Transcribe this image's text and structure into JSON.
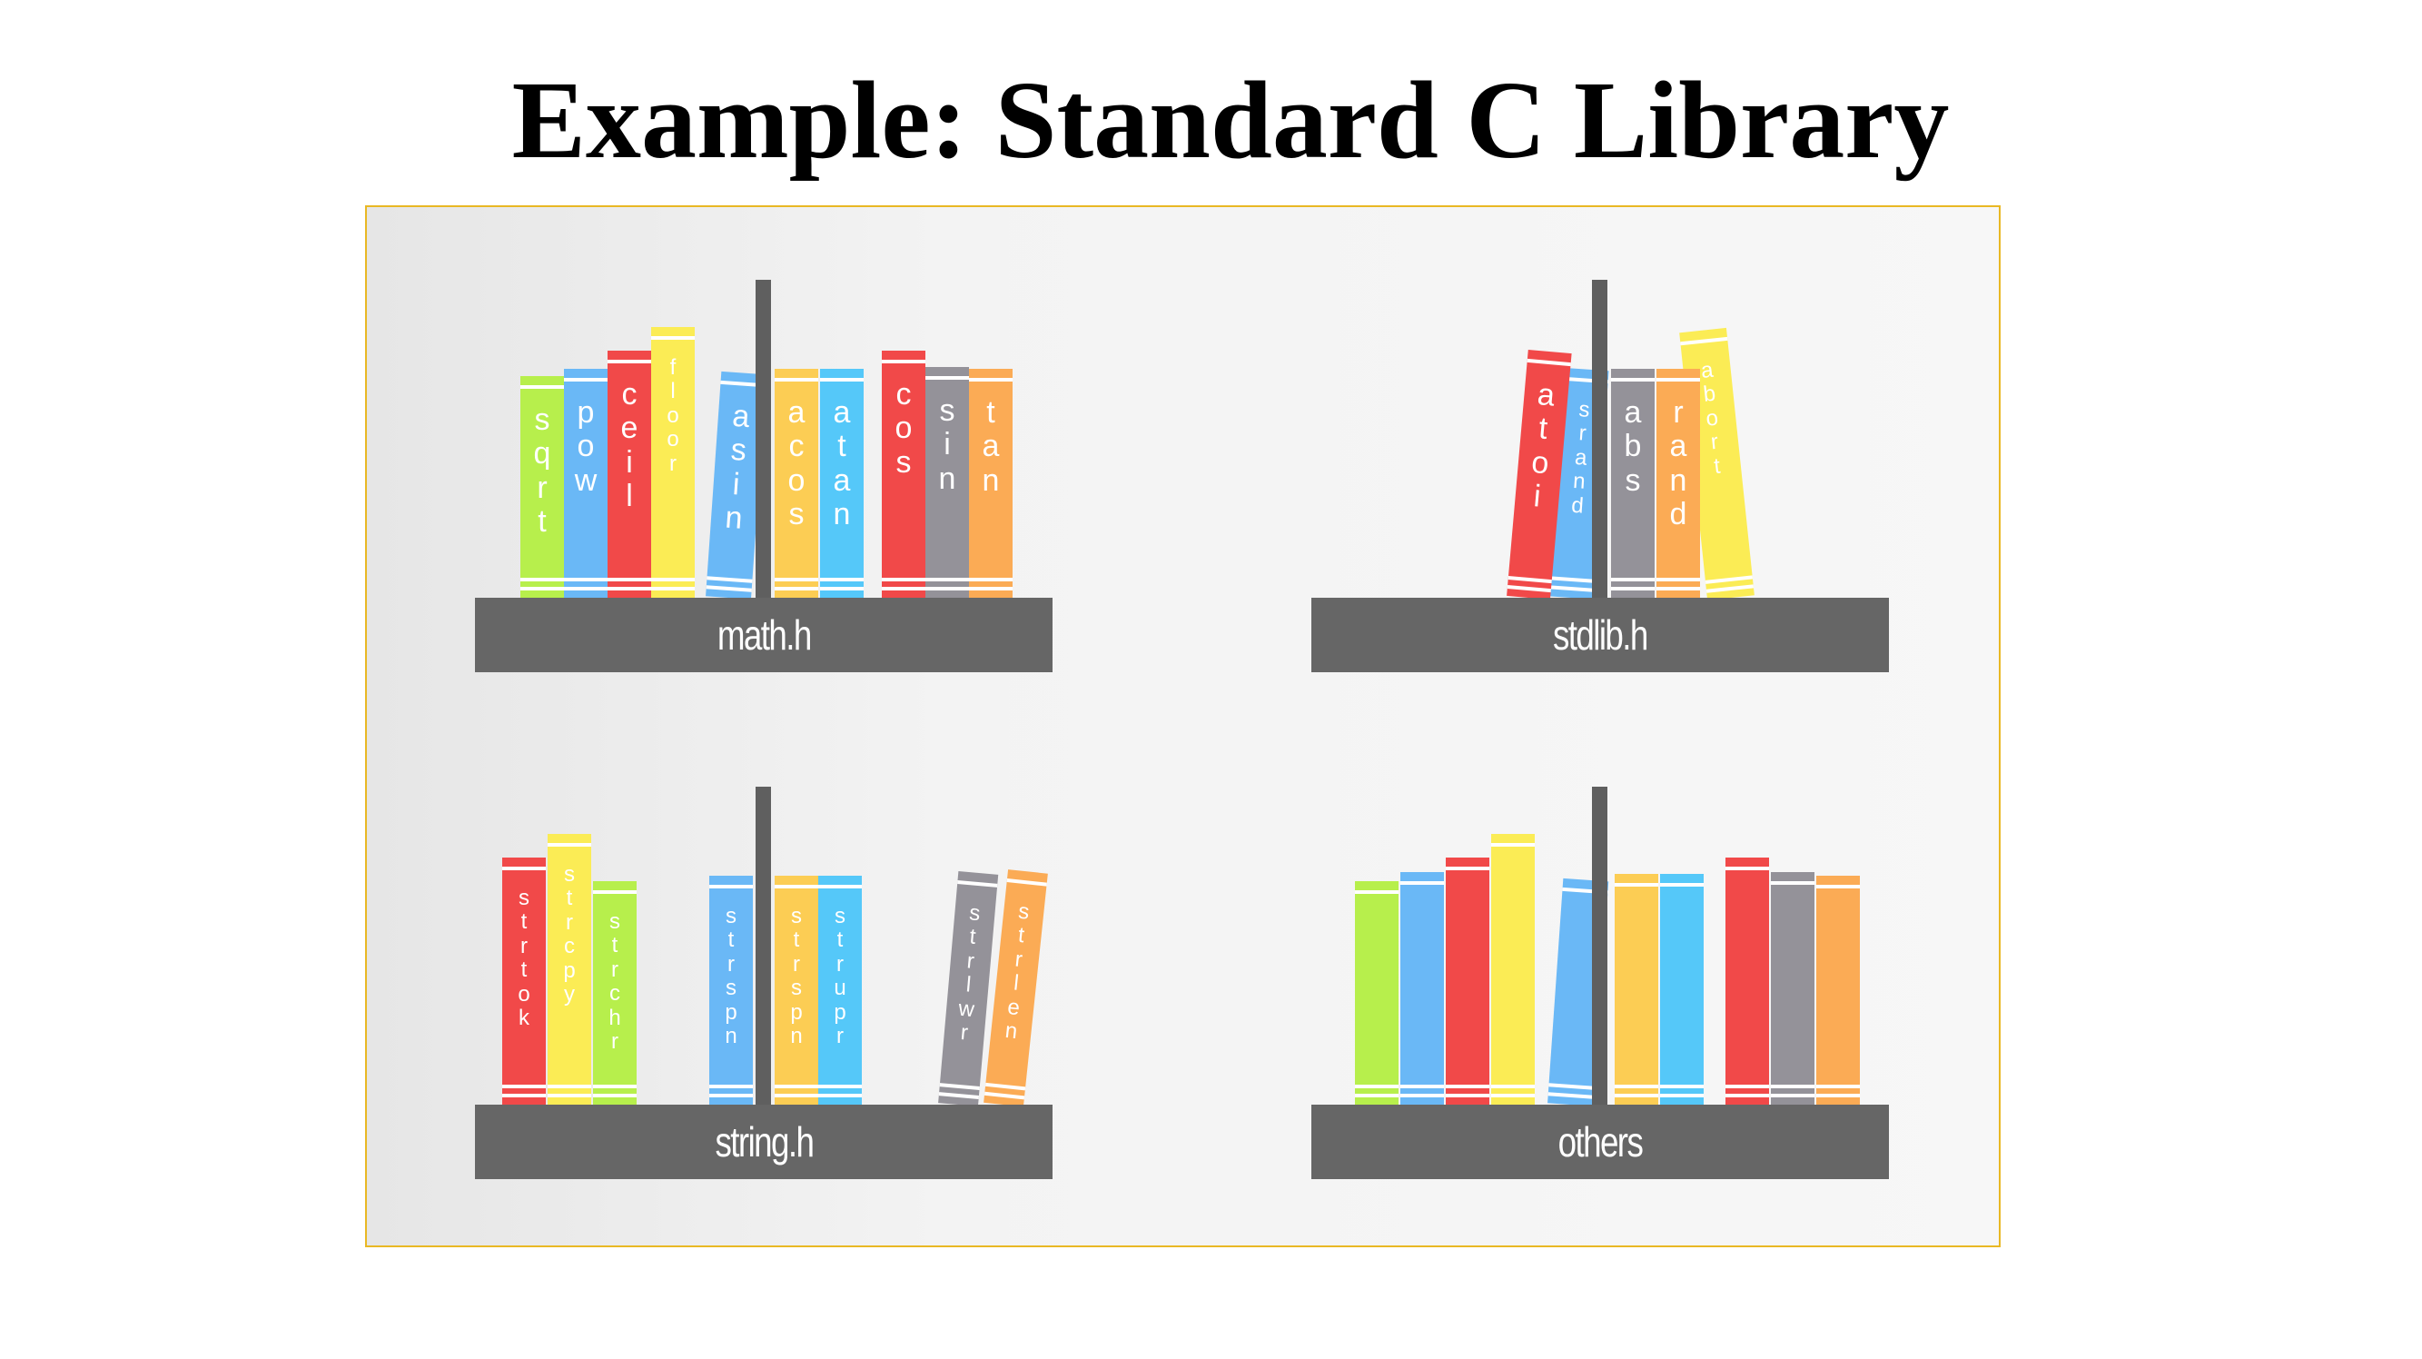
{
  "title": "Example: Standard C Library",
  "colors": {
    "green": "#b7ef4c",
    "blue": "#6ab8f6",
    "red": "#f14949",
    "yellow": "#fbec55",
    "orange": "#fccd54",
    "cyan": "#55c8f9",
    "gray": "#949299",
    "peach": "#fbab55",
    "panel_border": "#e9b824",
    "plank": "#666666"
  },
  "shelves": [
    {
      "id": "math",
      "label": "math.h",
      "books": [
        {
          "label": "sqrt",
          "color": "green"
        },
        {
          "label": "pow",
          "color": "blue"
        },
        {
          "label": "ceil",
          "color": "red"
        },
        {
          "label": "floor",
          "color": "yellow"
        },
        {
          "label": "asin",
          "color": "blue"
        },
        {
          "label": "acos",
          "color": "orange"
        },
        {
          "label": "atan",
          "color": "cyan"
        },
        {
          "label": "cos",
          "color": "red"
        },
        {
          "label": "sin",
          "color": "gray"
        },
        {
          "label": "tan",
          "color": "peach"
        }
      ]
    },
    {
      "id": "stdlib",
      "label": "stdlib.h",
      "books": [
        {
          "label": "atoi",
          "color": "red"
        },
        {
          "label": "srand",
          "color": "blue"
        },
        {
          "label": "abs",
          "color": "gray"
        },
        {
          "label": "rand",
          "color": "peach"
        },
        {
          "label": "abort",
          "color": "yellow"
        }
      ]
    },
    {
      "id": "string",
      "label": "string.h",
      "books": [
        {
          "label": "strtok",
          "color": "red"
        },
        {
          "label": "strcpy",
          "color": "yellow"
        },
        {
          "label": "strchr",
          "color": "green"
        },
        {
          "label": "strspn",
          "color": "blue"
        },
        {
          "label": "strspn",
          "color": "orange"
        },
        {
          "label": "strupr",
          "color": "cyan"
        },
        {
          "label": "strlwr",
          "color": "gray"
        },
        {
          "label": "strlen",
          "color": "peach"
        }
      ]
    },
    {
      "id": "others",
      "label": "others",
      "books": [
        {
          "label": "",
          "color": "green"
        },
        {
          "label": "",
          "color": "blue"
        },
        {
          "label": "",
          "color": "red"
        },
        {
          "label": "",
          "color": "yellow"
        },
        {
          "label": "",
          "color": "blue"
        },
        {
          "label": "",
          "color": "orange"
        },
        {
          "label": "",
          "color": "cyan"
        },
        {
          "label": "",
          "color": "red"
        },
        {
          "label": "",
          "color": "gray"
        },
        {
          "label": "",
          "color": "peach"
        }
      ]
    }
  ]
}
